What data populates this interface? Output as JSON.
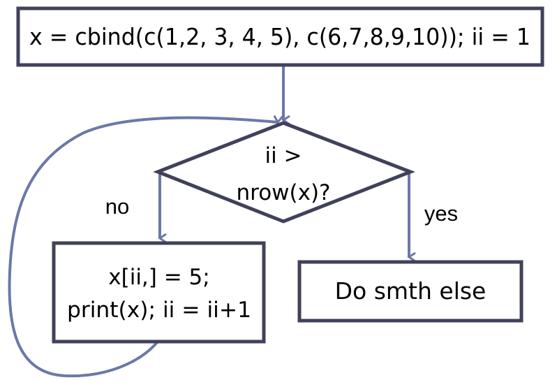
{
  "colors": {
    "stroke": "#40415a",
    "arrow": "#6b78a8",
    "text": "#000000",
    "background": "#ffffff"
  },
  "nodes": {
    "init": {
      "text": "x = cbind(c(1,2, 3, 4, 5), c(6,7,8,9,10));   ii = 1"
    },
    "decision": {
      "line1": "ii >",
      "line2": "nrow(x)?"
    },
    "loop_body": {
      "line1": "x[ii,] = 5;",
      "line2": "print(x); ii = ii+1"
    },
    "else_box": {
      "text": "Do smth else"
    }
  },
  "edges": {
    "no_label": "no",
    "yes_label": "yes"
  }
}
